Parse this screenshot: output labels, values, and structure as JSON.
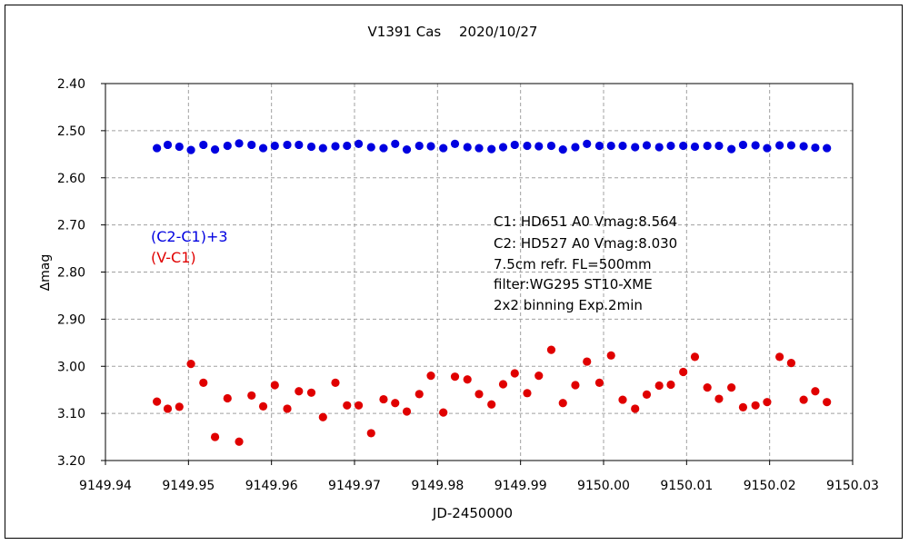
{
  "chart_data": {
    "type": "scatter",
    "title": "V1391 Cas　 2020/10/27",
    "xlabel": "JD-2450000",
    "ylabel": "∆mag",
    "xlim": [
      9149.94,
      9150.03
    ],
    "ylim": [
      2.4,
      3.2
    ],
    "y_inverted": true,
    "grid": true,
    "x_ticks": [
      "9149.94",
      "9149.95",
      "9149.96",
      "9149.97",
      "9149.98",
      "9149.99",
      "9150.00",
      "9150.01",
      "9150.02",
      "9150.03"
    ],
    "y_ticks": [
      "2.40",
      "2.50",
      "2.60",
      "2.70",
      "2.80",
      "2.90",
      "3.00",
      "3.10",
      "3.20"
    ],
    "legend": [
      {
        "name": "(C2-C1)+3",
        "color": "#0000e0"
      },
      {
        "name": "(V-C1)",
        "color": "#e00000"
      }
    ],
    "notes": [
      "C1: HD651 A0 Vmag:8.564",
      "C2: HD527 A0 Vmag:8.030",
      "7.5cm refr. FL=500mm",
      "filter:WG295 ST10-XME",
      "2x2 binning Exp.2min"
    ],
    "x": [
      9149.9462,
      9149.9475,
      9149.9489,
      9149.9503,
      9149.9518,
      9149.9532,
      9149.9547,
      9149.9561,
      9149.9576,
      9149.959,
      9149.9604,
      9149.9619,
      9149.9633,
      9149.9648,
      9149.9662,
      9149.9677,
      9149.9691,
      9149.9705,
      9149.972,
      9149.9735,
      9149.9749,
      9149.9763,
      9149.9778,
      9149.9792,
      9149.9807,
      9149.9821,
      9149.9836,
      9149.985,
      9149.9865,
      9149.9879,
      9149.9893,
      9149.9908,
      9149.9922,
      9149.9937,
      9149.9951,
      9149.9966,
      9149.998,
      9149.9995,
      9150.0009,
      9150.0023,
      9150.0038,
      9150.0052,
      9150.0067,
      9150.0081,
      9150.0096,
      9150.011,
      9150.0125,
      9150.0139,
      9150.0154,
      9150.0168,
      9150.0183,
      9150.0197,
      9150.0212,
      9150.0226,
      9150.0241,
      9150.0255,
      9150.0269
    ],
    "series": [
      {
        "name": "(C2-C1)+3",
        "color": "#0000e0",
        "values": [
          2.537,
          2.53,
          2.534,
          2.541,
          2.53,
          2.54,
          2.532,
          2.527,
          2.53,
          2.537,
          2.532,
          2.53,
          2.53,
          2.534,
          2.537,
          2.533,
          2.532,
          2.528,
          2.535,
          2.537,
          2.528,
          2.54,
          2.532,
          2.533,
          2.537,
          2.528,
          2.535,
          2.537,
          2.539,
          2.535,
          2.53,
          2.532,
          2.533,
          2.532,
          2.54,
          2.535,
          2.528,
          2.532,
          2.532,
          2.532,
          2.535,
          2.531,
          2.535,
          2.532,
          2.532,
          2.534,
          2.532,
          2.532,
          2.539,
          2.53,
          2.531,
          2.537,
          2.531,
          2.531,
          2.533,
          2.536,
          2.537
        ]
      },
      {
        "name": "(V-C1)",
        "color": "#e00000",
        "values": [
          3.075,
          3.09,
          3.086,
          2.995,
          3.035,
          3.15,
          3.068,
          3.16,
          3.062,
          3.085,
          3.04,
          3.09,
          3.053,
          3.056,
          3.108,
          3.035,
          3.083,
          3.083,
          3.142,
          3.07,
          3.078,
          3.096,
          3.059,
          3.02,
          3.098,
          3.022,
          3.028,
          3.059,
          3.081,
          3.038,
          3.015,
          3.057,
          3.02,
          2.965,
          3.078,
          3.04,
          2.99,
          3.035,
          2.977,
          3.071,
          3.09,
          3.06,
          3.041,
          3.039,
          3.012,
          2.98,
          3.045,
          3.069,
          3.045,
          3.087,
          3.083,
          3.076,
          2.98,
          2.993,
          3.071,
          3.053,
          3.076
        ]
      }
    ]
  }
}
